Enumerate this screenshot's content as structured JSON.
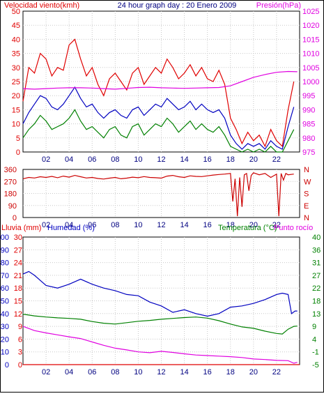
{
  "chart_data": [
    {
      "type": "line",
      "title": "24 hour graph day : 20 Enero 2009",
      "left_axis_label": "Velocidad viento(kmh)",
      "right_axis_label": "Presión(hPa)",
      "x_ticks": [
        "02",
        "04",
        "06",
        "08",
        "10",
        "12",
        "14",
        "16",
        "18",
        "20",
        "22"
      ],
      "x_range": [
        0,
        24
      ],
      "left_ylim": [
        0,
        50
      ],
      "left_ticks": [
        "0",
        "5",
        "10",
        "15",
        "20",
        "25",
        "30",
        "35",
        "40",
        "45",
        "50"
      ],
      "right_ylim": [
        975,
        1025
      ],
      "right_ticks": [
        "975",
        "980",
        "985",
        "990",
        "995",
        "1000",
        "1005",
        "1010",
        "1015",
        "1020",
        "1025"
      ],
      "grid": true,
      "series": [
        {
          "axis": "left",
          "color": "#e00000",
          "x": [
            0,
            0.5,
            1,
            1.5,
            2,
            2.5,
            3,
            3.5,
            4,
            4.5,
            5,
            5.5,
            6,
            6.5,
            7,
            7.5,
            8,
            8.5,
            9,
            9.5,
            10,
            10.5,
            11,
            11.5,
            12,
            12.5,
            13,
            13.5,
            14,
            14.5,
            15,
            15.5,
            16,
            16.5,
            17,
            17.5,
            18,
            18.5,
            19,
            19.5,
            20,
            20.5,
            21,
            21.5,
            22,
            22.5,
            23,
            23.5
          ],
          "y": [
            18,
            30,
            28,
            35,
            33,
            27,
            30,
            29,
            38,
            40,
            33,
            27,
            30,
            24,
            20,
            26,
            28,
            25,
            22,
            28,
            30,
            24,
            27,
            30,
            28,
            33,
            30,
            26,
            28,
            31,
            27,
            30,
            26,
            25,
            29,
            24,
            12,
            8,
            3,
            7,
            4,
            6,
            2,
            8,
            4,
            2,
            15,
            25
          ]
        },
        {
          "axis": "left",
          "color": "#0000c0",
          "x": [
            0,
            0.5,
            1,
            1.5,
            2,
            2.5,
            3,
            3.5,
            4,
            4.5,
            5,
            5.5,
            6,
            6.5,
            7,
            7.5,
            8,
            8.5,
            9,
            9.5,
            10,
            10.5,
            11,
            11.5,
            12,
            12.5,
            13,
            13.5,
            14,
            14.5,
            15,
            15.5,
            16,
            16.5,
            17,
            17.5,
            18,
            18.5,
            19,
            19.5,
            20,
            20.5,
            21,
            21.5,
            22,
            22.5,
            23,
            23.5
          ],
          "y": [
            10,
            14,
            17,
            20,
            19,
            16,
            15,
            17,
            20,
            23,
            19,
            16,
            17,
            14,
            12,
            14,
            15,
            13,
            12,
            15,
            16,
            13,
            15,
            17,
            16,
            19,
            17,
            15,
            16,
            18,
            15,
            17,
            15,
            14,
            15,
            12,
            6,
            3,
            1,
            3,
            2,
            3,
            1,
            4,
            2,
            1,
            9,
            16
          ]
        },
        {
          "axis": "left",
          "color": "#008000",
          "x": [
            0,
            0.5,
            1,
            1.5,
            2,
            2.5,
            3,
            3.5,
            4,
            4.5,
            5,
            5.5,
            6,
            6.5,
            7,
            7.5,
            8,
            8.5,
            9,
            9.5,
            10,
            10.5,
            11,
            11.5,
            12,
            12.5,
            13,
            13.5,
            14,
            14.5,
            15,
            15.5,
            16,
            16.5,
            17,
            17.5,
            18,
            18.5,
            19,
            19.5,
            20,
            20.5,
            21,
            21.5,
            22,
            22.5,
            23,
            23.5
          ],
          "y": [
            5,
            8,
            10,
            13,
            11,
            8,
            9,
            10,
            12,
            15,
            11,
            8,
            9,
            7,
            5,
            8,
            9,
            6,
            5,
            9,
            10,
            6,
            8,
            10,
            9,
            12,
            10,
            7,
            9,
            11,
            8,
            10,
            8,
            7,
            9,
            6,
            2,
            1,
            0,
            1,
            0,
            1,
            0,
            2,
            0,
            0,
            4,
            8
          ]
        },
        {
          "axis": "right",
          "color": "#e000e0",
          "x": [
            0,
            1,
            2,
            3,
            4,
            5,
            6,
            7,
            8,
            9,
            10,
            11,
            12,
            13,
            14,
            15,
            16,
            17,
            18,
            19,
            20,
            21,
            22,
            23,
            23.8
          ],
          "y": [
            997.5,
            997.3,
            997.5,
            997.7,
            997.8,
            997.8,
            997.7,
            997.5,
            997.3,
            997.6,
            997.9,
            998.0,
            997.8,
            997.7,
            997.6,
            997.7,
            997.8,
            997.9,
            998.5,
            1000.0,
            1001.5,
            1002.5,
            1003.3,
            1003.6,
            1003.5
          ]
        }
      ]
    },
    {
      "type": "line",
      "x_ticks": [
        "02",
        "04",
        "06",
        "08",
        "10",
        "12",
        "14",
        "16",
        "18",
        "20",
        "22"
      ],
      "x_range": [
        0,
        24
      ],
      "ylim": [
        0,
        360
      ],
      "left_ticks": [
        "0",
        "90",
        "180",
        "270",
        "360"
      ],
      "right_ticks": [
        "N",
        "E",
        "S",
        "W",
        "N"
      ],
      "grid": true,
      "series": [
        {
          "name": "direction",
          "color": "#cc0000",
          "x": [
            0,
            0.5,
            1,
            1.5,
            2,
            2.5,
            3,
            3.5,
            4,
            4.5,
            5,
            5.5,
            6,
            6.5,
            7,
            7.5,
            8,
            8.5,
            9,
            9.5,
            10,
            10.5,
            11,
            11.5,
            12,
            12.5,
            13,
            13.5,
            14,
            14.5,
            15,
            15.5,
            16,
            16.5,
            17,
            17.5,
            18,
            18.2,
            18.4,
            18.6,
            18.8,
            19,
            19.2,
            19.4,
            19.6,
            19.8,
            20,
            20.5,
            21,
            21.5,
            22,
            22.2,
            22.4,
            22.6,
            22.8,
            23,
            23.5
          ],
          "y": [
            290,
            300,
            296,
            305,
            300,
            308,
            298,
            310,
            302,
            315,
            305,
            296,
            300,
            292,
            288,
            295,
            300,
            290,
            295,
            302,
            298,
            306,
            300,
            298,
            295,
            310,
            315,
            305,
            300,
            312,
            308,
            306,
            312,
            318,
            322,
            325,
            330,
            120,
            290,
            10,
            300,
            80,
            320,
            330,
            200,
            315,
            335,
            320,
            330,
            300,
            325,
            10,
            330,
            280,
            330,
            320,
            325
          ]
        }
      ]
    },
    {
      "type": "line",
      "left_axis_label": "Lluvia (mm)",
      "left_axis_label2": "Humedad (%)",
      "right_axis_label": "Temperatura (°C)",
      "right_axis_label2": "Punto rocío",
      "x_ticks": [
        "02",
        "04",
        "06",
        "08",
        "10",
        "12",
        "14",
        "16",
        "18",
        "20",
        "22"
      ],
      "x_range": [
        0,
        24
      ],
      "rain_ticks": [
        "0",
        "3",
        "6",
        "9",
        "12",
        "15",
        "18",
        "21",
        "24",
        "27",
        "30"
      ],
      "humidity_ticks": [
        "0",
        "10",
        "20",
        "30",
        "40",
        "50",
        "60",
        "70",
        "80",
        "90",
        "100"
      ],
      "humidity_ylim": [
        0,
        100
      ],
      "temp_ticks": [
        "-5",
        "-1",
        "4",
        "9",
        "13",
        "18",
        "22",
        "27",
        "31",
        "36",
        "40"
      ],
      "temp_ylim": [
        -5,
        40
      ],
      "grid": true,
      "series": [
        {
          "axis": "humidity",
          "color": "#0000c0",
          "x": [
            0,
            0.5,
            1,
            1.5,
            2,
            3,
            4,
            5,
            6,
            7,
            8,
            9,
            10,
            11,
            12,
            13,
            14,
            15,
            16,
            17,
            18,
            19,
            20,
            21,
            22,
            22.5,
            23,
            23.3,
            23.6,
            23.8
          ],
          "y": [
            71,
            73,
            70,
            66,
            62,
            60,
            63,
            67,
            63,
            60,
            58,
            55,
            54,
            49,
            46,
            41,
            43,
            40,
            38,
            40,
            45,
            46,
            48,
            51,
            55,
            56,
            55,
            40,
            42,
            42
          ]
        },
        {
          "axis": "temp",
          "color": "#008000",
          "x": [
            0,
            1,
            2,
            3,
            4,
            5,
            6,
            7,
            8,
            9,
            10,
            11,
            12,
            13,
            14,
            15,
            16,
            17,
            18,
            19,
            20,
            21,
            22,
            22.5,
            23,
            23.5,
            23.8
          ],
          "y": [
            12.8,
            12.2,
            11.8,
            11.5,
            11.3,
            11.0,
            10.2,
            9.6,
            9.3,
            9.8,
            10.3,
            10.6,
            11.0,
            11.3,
            11.6,
            11.8,
            11.4,
            10.5,
            9.3,
            8.3,
            7.8,
            6.8,
            6.0,
            5.8,
            7.5,
            8.5,
            8.6
          ]
        },
        {
          "axis": "temp",
          "color": "#e000e0",
          "x": [
            0,
            1,
            2,
            3,
            4,
            5,
            6,
            7,
            8,
            9,
            10,
            11,
            12,
            13,
            14,
            15,
            16,
            17,
            18,
            19,
            20,
            21,
            22,
            23,
            23.5,
            23.8
          ],
          "y": [
            8.5,
            7.0,
            6.2,
            5.5,
            4.8,
            4.2,
            3.0,
            1.8,
            0.8,
            0.2,
            -0.5,
            -0.8,
            -0.3,
            -0.7,
            -1.2,
            -1.6,
            -1.8,
            -2.0,
            -2.2,
            -2.5,
            -3.0,
            -3.2,
            -3.5,
            -3.6,
            -4.5,
            -4.2
          ]
        },
        {
          "axis": "rain",
          "color": "#e00000",
          "x": [
            0,
            24
          ],
          "y": [
            0,
            0
          ]
        }
      ]
    }
  ]
}
